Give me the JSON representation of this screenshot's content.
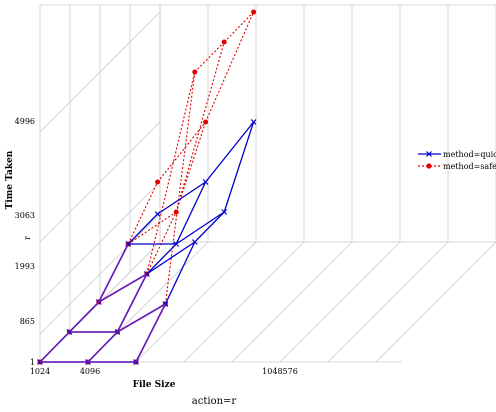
{
  "chart_data": {
    "type": "line",
    "projection": "3d",
    "title": "",
    "xlabel": "File Size",
    "ylabel": "Time Taken",
    "zlabel": "r",
    "footer": "action=r",
    "x_ticks": [
      "1024",
      "4096",
      "1048576"
    ],
    "y_ticks": [
      "1",
      "865",
      "1993",
      "3063",
      "4996"
    ],
    "grid": true,
    "legend_position": "right",
    "colors": {
      "quick": "#0000cc",
      "safe": "#e00000",
      "overlap": "#6a1ab8",
      "grid": "#cccccc"
    },
    "series": [
      {
        "name": "method=quick",
        "marker": "x",
        "rows": [
          [
            1,
            1,
            1
          ],
          [
            1,
            1,
            865
          ],
          [
            1,
            865,
            1993
          ],
          [
            865,
            865,
            1993
          ],
          [
            865,
            1993,
            3063
          ]
        ]
      },
      {
        "name": "method=safe",
        "marker": "dot",
        "rows": [
          [
            1,
            1,
            1
          ],
          [
            1,
            1,
            865
          ],
          [
            1,
            865,
            4996
          ],
          [
            865,
            1993,
            4996
          ],
          [
            1993,
            3063,
            4996
          ]
        ]
      }
    ]
  }
}
